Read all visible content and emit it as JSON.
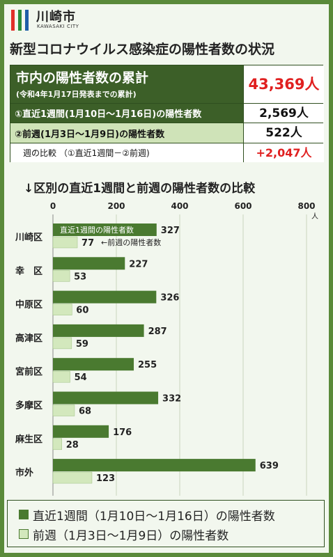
{
  "header": {
    "org_name": "川崎市",
    "org_sub": "KAWASAKI CITY",
    "title": "新型コロナウイルス感染症の陽性者数の状況"
  },
  "summary": {
    "total_label": "市内の陽性者数の累計",
    "total_note": "(令和4年1月17日発表までの累計)",
    "total_value": "43,369人",
    "recent_label": "①直近1週間(1月10日～1月16日)の陽性者数",
    "recent_value": "2,569人",
    "prev_label": "②前週(1月3日～1月9日)の陽性者数",
    "prev_value": "522人",
    "diff_label": "週の比較 （①直近1週間－②前週)",
    "diff_value": "+2,047人"
  },
  "colors": {
    "recent": "#4a7a30",
    "previous": "#d3e8bd",
    "accent_red": "#e02020",
    "dark_green": "#3c5f28"
  },
  "chart_data": {
    "type": "bar",
    "orientation": "horizontal",
    "title": "↓区別の直近1週間と前週の陽性者数の比較",
    "categories": [
      "川崎区",
      "幸　区",
      "中原区",
      "高津区",
      "宮前区",
      "多摩区",
      "麻生区",
      "市外"
    ],
    "series": [
      {
        "name": "直近1週間（1月10日～1月16日）の陽性者数",
        "values": [
          327,
          227,
          326,
          287,
          255,
          332,
          176,
          639
        ]
      },
      {
        "name": "前週（1月3日～1月9日）の陽性者数",
        "values": [
          77,
          53,
          60,
          59,
          54,
          68,
          28,
          123
        ]
      }
    ],
    "xlim": [
      0,
      800
    ],
    "xticks": [
      "0",
      "200",
      "400",
      "600",
      "800"
    ],
    "unit_label": "人",
    "annotations": {
      "recent_bar_label": "直近1週間の陽性者数",
      "previous_bar_label": "←前週の陽性者数"
    },
    "legend_position": "bottom"
  }
}
